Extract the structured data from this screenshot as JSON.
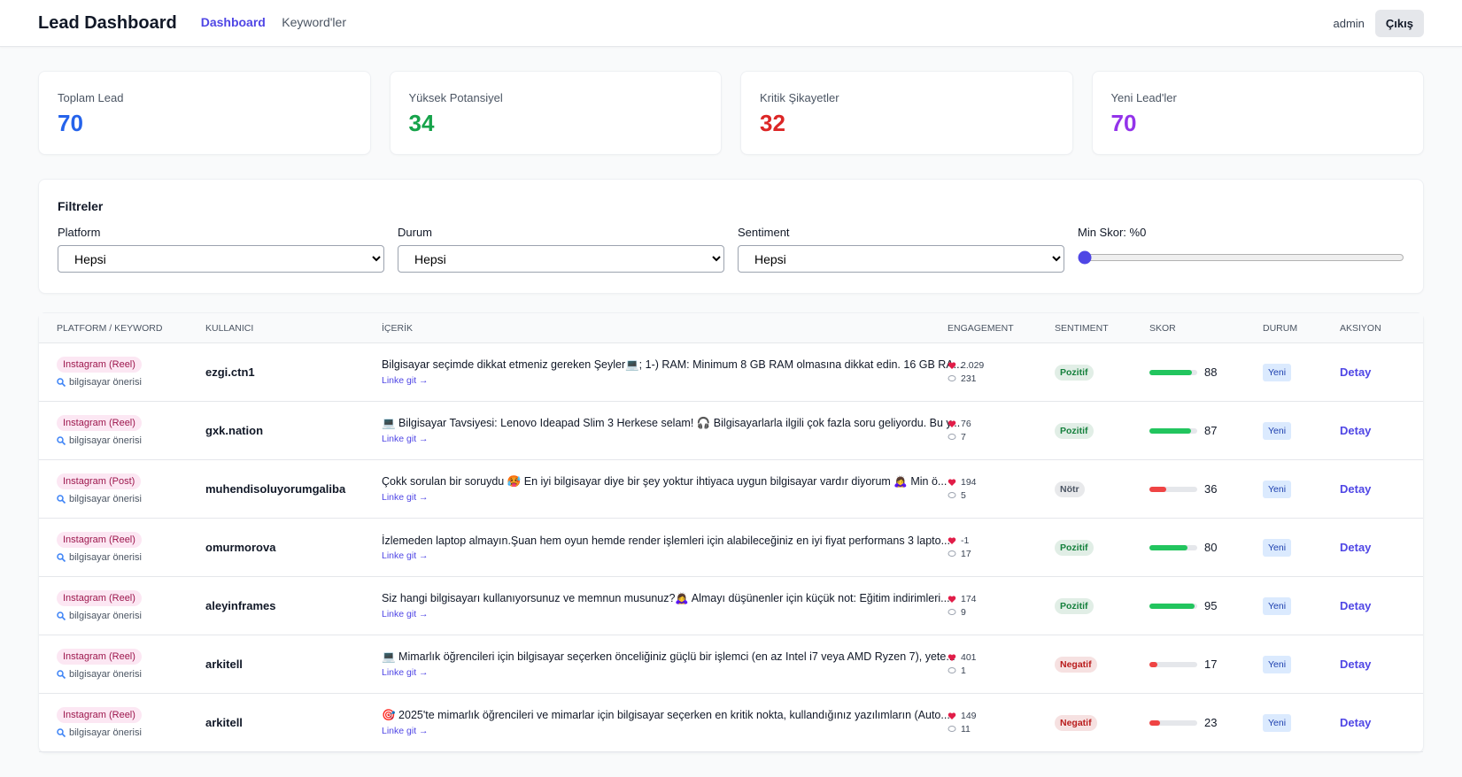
{
  "header": {
    "title": "Lead Dashboard",
    "nav": [
      "Dashboard",
      "Keyword'ler"
    ],
    "user": "admin",
    "logout": "Çıkış"
  },
  "stats": [
    {
      "label": "Toplam Lead",
      "value": 70,
      "color": "#2563eb"
    },
    {
      "label": "Yüksek Potansiyel",
      "value": 34,
      "color": "#16a34a"
    },
    {
      "label": "Kritik Şikayetler",
      "value": 32,
      "color": "#dc2626"
    },
    {
      "label": "Yeni Lead'ler",
      "value": 70,
      "color": "#9333ea"
    }
  ],
  "filters": {
    "title": "Filtreler",
    "fields": [
      {
        "label": "Platform",
        "value": "Hepsi"
      },
      {
        "label": "Durum",
        "value": "Hepsi"
      },
      {
        "label": "Sentiment",
        "value": "Hepsi"
      }
    ],
    "min_score_label": "Min Skor: %0",
    "min_score": 0
  },
  "table": {
    "columns": [
      "PLATFORM / KEYWORD",
      "KULLANICI",
      "İÇERİK",
      "ENGAGEMENT",
      "SENTIMENT",
      "SKOR",
      "DURUM",
      "AKSIYON"
    ],
    "rows": [
      {
        "platform": "Instagram (Reel)",
        "keyword": "bilgisayar önerisi",
        "user": "ezgi.ctn1",
        "content": "Bilgisayar seçimde dikkat etmeniz gereken Şeyler💻; 1-) RAM: Minimum 8 GB RAM olmasına dikkat edin. 16 GB RA...",
        "link": "Linke git →",
        "likes": "2.029",
        "comments": "231",
        "sentiment": "Pozitif",
        "sentiment_color": "#15803d",
        "score": 88,
        "score_color": "#22c55e",
        "status": "Yeni",
        "action": "Detay"
      },
      {
        "platform": "Instagram (Reel)",
        "keyword": "bilgisayar önerisi",
        "user": "gxk.nation",
        "content": "💻 Bilgisayar Tavsiyesi: Lenovo Ideapad Slim 3 Herkese selam! 🎧 Bilgisayarlarla ilgili çok fazla soru geliyordu. Bu y...",
        "link": "Linke git →",
        "likes": "76",
        "comments": "7",
        "sentiment": "Pozitif",
        "sentiment_color": "#15803d",
        "score": 87,
        "score_color": "#22c55e",
        "status": "Yeni",
        "action": "Detay"
      },
      {
        "platform": "Instagram (Post)",
        "keyword": "bilgisayar önerisi",
        "user": "muhendisoluyorumgaliba",
        "content": "Çokk sorulan bir soruydu 🥵 En iyi bilgisayar diye bir şey yoktur ihtiyaca uygun bilgisayar vardır diyorum 🙇‍♀️ Min ö...",
        "link": "Linke git →",
        "likes": "194",
        "comments": "5",
        "sentiment": "Nötr",
        "sentiment_color": "#4b5563",
        "score": 36,
        "score_color": "#ef4444",
        "status": "Yeni",
        "action": "Detay"
      },
      {
        "platform": "Instagram (Reel)",
        "keyword": "bilgisayar önerisi",
        "user": "omurmorova",
        "content": "İzlemeden laptop almayın.Şuan hem oyun hemde render işlemleri için alabileceğiniz en iyi fiyat performans 3 lapto...",
        "link": "Linke git →",
        "likes": "-1",
        "comments": "17",
        "sentiment": "Pozitif",
        "sentiment_color": "#15803d",
        "score": 80,
        "score_color": "#22c55e",
        "status": "Yeni",
        "action": "Detay"
      },
      {
        "platform": "Instagram (Reel)",
        "keyword": "bilgisayar önerisi",
        "user": "aleyinframes",
        "content": "Siz hangi bilgisayarı kullanıyorsunuz ve memnun musunuz?🙇‍♀️ Almayı düşünenler için küçük not: Eğitim indirimleri...",
        "link": "Linke git →",
        "likes": "174",
        "comments": "9",
        "sentiment": "Pozitif",
        "sentiment_color": "#15803d",
        "score": 95,
        "score_color": "#22c55e",
        "status": "Yeni",
        "action": "Detay"
      },
      {
        "platform": "Instagram (Reel)",
        "keyword": "bilgisayar önerisi",
        "user": "arkitell",
        "content": "💻 Mimarlık öğrencileri için bilgisayar seçerken önceliğiniz güçlü bir işlemci (en az Intel i7 veya AMD Ryzen 7), yete...",
        "link": "Linke git →",
        "likes": "401",
        "comments": "1",
        "sentiment": "Negatif",
        "sentiment_color": "#b91c1c",
        "score": 17,
        "score_color": "#ef4444",
        "status": "Yeni",
        "action": "Detay"
      },
      {
        "platform": "Instagram (Reel)",
        "keyword": "bilgisayar önerisi",
        "user": "arkitell",
        "content": "🎯 2025'te mimarlık öğrencileri ve mimarlar için bilgisayar seçerken en kritik nokta, kullandığınız yazılımların (Auto...",
        "link": "Linke git →",
        "likes": "149",
        "comments": "11",
        "sentiment": "Negatif",
        "sentiment_color": "#b91c1c",
        "score": 23,
        "score_color": "#ef4444",
        "status": "Yeni",
        "action": "Detay"
      }
    ]
  }
}
